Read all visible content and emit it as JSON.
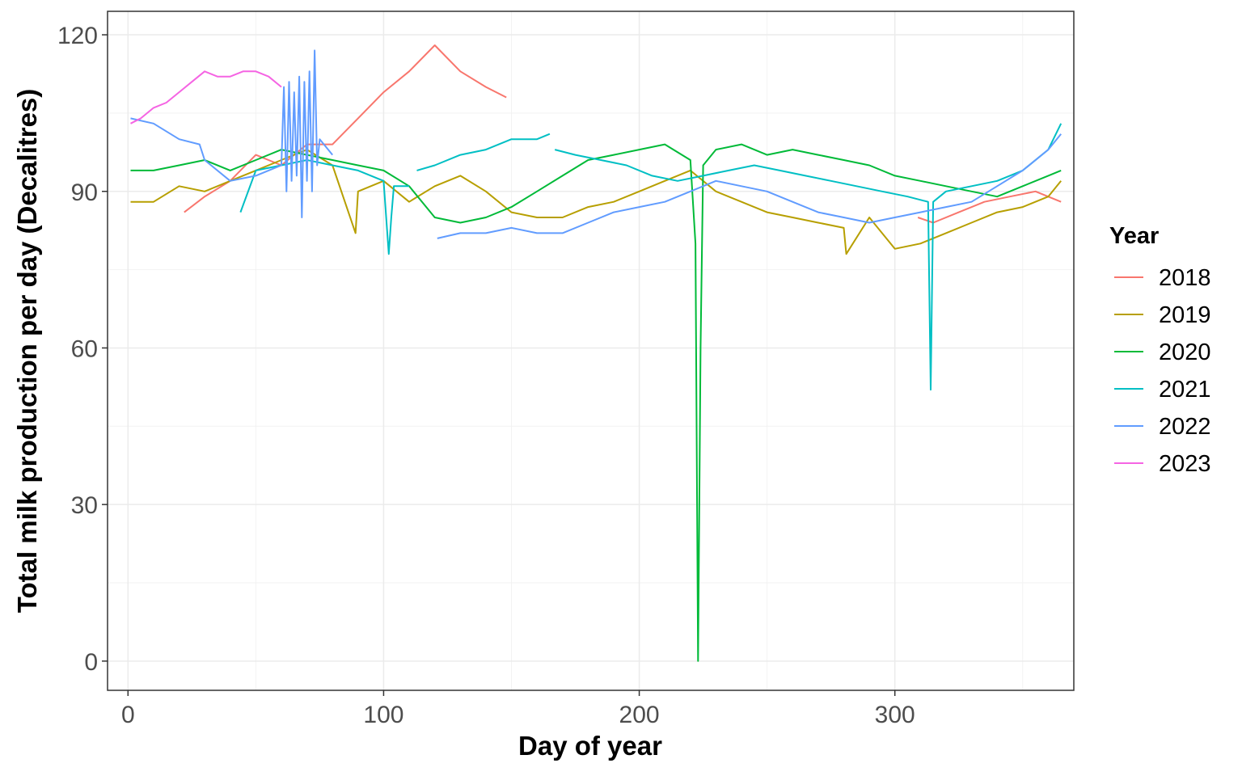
{
  "chart_data": {
    "type": "line",
    "title": "",
    "xlabel": "Day of year",
    "ylabel": "Total milk production per day (Decalitres)",
    "xlim": [
      -8,
      370
    ],
    "ylim": [
      -5.6,
      124.5
    ],
    "x_ticks": [
      0,
      100,
      200,
      300
    ],
    "y_ticks": [
      0,
      30,
      60,
      90,
      120
    ],
    "x_tick_labels": [
      "0",
      "100",
      "200",
      "300"
    ],
    "y_tick_labels": [
      "0",
      "30",
      "60",
      "90",
      "120"
    ],
    "grid": true,
    "legend": {
      "title": "Year",
      "position": "right"
    },
    "series": [
      {
        "name": "2018",
        "color": "#F8766D",
        "segments": [
          {
            "x": [
              22,
              30,
              40,
              50,
              60,
              70,
              80,
              90,
              100,
              110,
              120,
              130,
              140,
              148
            ],
            "y": [
              86,
              89,
              92,
              97,
              95,
              99,
              99,
              104,
              109,
              113,
              118,
              113,
              110,
              108
            ]
          },
          {
            "x": [
              309,
              315,
              325,
              335,
              345,
              355,
              365
            ],
            "y": [
              85,
              84,
              86,
              88,
              89,
              90,
              88
            ]
          }
        ]
      },
      {
        "name": "2019",
        "color": "#B79F00",
        "segments": [
          {
            "x": [
              1,
              10,
              20,
              30,
              40,
              50,
              60,
              70,
              80,
              89,
              90,
              100,
              110,
              120,
              130,
              140,
              150,
              160,
              170,
              180,
              190,
              200,
              210,
              220,
              230,
              240,
              250,
              260,
              270,
              280,
              281,
              290,
              300,
              310,
              320,
              330,
              340,
              350,
              360,
              365
            ],
            "y": [
              88,
              88,
              91,
              90,
              92,
              94,
              96,
              98,
              95,
              82,
              90,
              92,
              88,
              91,
              93,
              90,
              86,
              85,
              85,
              87,
              88,
              90,
              92,
              94,
              90,
              88,
              86,
              85,
              84,
              83,
              78,
              85,
              79,
              80,
              82,
              84,
              86,
              87,
              89,
              92
            ]
          }
        ]
      },
      {
        "name": "2020",
        "color": "#00BA38",
        "segments": [
          {
            "x": [
              1,
              10,
              20,
              30,
              40,
              50,
              60,
              70,
              80,
              90,
              100,
              110,
              120,
              130,
              140,
              150,
              160,
              170,
              180,
              190,
              200,
              210,
              220,
              222,
              223,
              224,
              225,
              230,
              240,
              250,
              260,
              270,
              280,
              290,
              300,
              310,
              320,
              330,
              340,
              350,
              360,
              365
            ],
            "y": [
              94,
              94,
              95,
              96,
              94,
              96,
              98,
              97,
              96,
              95,
              94,
              91,
              85,
              84,
              85,
              87,
              90,
              93,
              96,
              97,
              98,
              99,
              96,
              80,
              0,
              60,
              95,
              98,
              99,
              97,
              98,
              97,
              96,
              95,
              93,
              92,
              91,
              90,
              89,
              91,
              93,
              94
            ]
          }
        ]
      },
      {
        "name": "2021",
        "color": "#00BFC4",
        "segments": [
          {
            "x": [
              44,
              50,
              60,
              70,
              80,
              90,
              100,
              102,
              103,
              104,
              110
            ],
            "y": [
              86,
              94,
              95,
              96,
              95,
              94,
              92,
              78,
              85,
              91,
              91
            ]
          },
          {
            "x": [
              113,
              120,
              130,
              140,
              150,
              160,
              165
            ],
            "y": [
              94,
              95,
              97,
              98,
              100,
              100,
              101
            ]
          },
          {
            "x": [
              167,
              175,
              185,
              195,
              205,
              215,
              225,
              235,
              245,
              255,
              265,
              275,
              285,
              295,
              305,
              313,
              314,
              315,
              320,
              330,
              340,
              350,
              360,
              365
            ],
            "y": [
              98,
              97,
              96,
              95,
              93,
              92,
              93,
              94,
              95,
              94,
              93,
              92,
              91,
              90,
              89,
              88,
              52,
              88,
              90,
              91,
              92,
              94,
              98,
              103
            ]
          }
        ]
      },
      {
        "name": "2022",
        "color": "#619CFF",
        "segments": [
          {
            "x": [
              1,
              10,
              20,
              28,
              30,
              40,
              50,
              55,
              60,
              61,
              62,
              63,
              64,
              65,
              66,
              67,
              68,
              69,
              70,
              71,
              72,
              73,
              74,
              75,
              80
            ],
            "y": [
              104,
              103,
              100,
              99,
              96,
              92,
              93,
              94,
              95,
              110,
              90,
              111,
              92,
              109,
              93,
              112,
              85,
              111,
              92,
              113,
              90,
              117,
              95,
              100,
              97
            ]
          },
          {
            "x": [
              121,
              130,
              140,
              150,
              160,
              170,
              180,
              190,
              200,
              210,
              220,
              230,
              240,
              250,
              260,
              270,
              280,
              290,
              300,
              310,
              320,
              330,
              340,
              350,
              360,
              365
            ],
            "y": [
              81,
              82,
              82,
              83,
              82,
              82,
              84,
              86,
              87,
              88,
              90,
              92,
              91,
              90,
              88,
              86,
              85,
              84,
              85,
              86,
              87,
              88,
              91,
              94,
              98,
              101
            ]
          }
        ]
      },
      {
        "name": "2023",
        "color": "#F564E3",
        "segments": [
          {
            "x": [
              1,
              5,
              10,
              15,
              20,
              25,
              30,
              35,
              40,
              45,
              50,
              55,
              60
            ],
            "y": [
              103,
              104,
              106,
              107,
              109,
              111,
              113,
              112,
              112,
              113,
              113,
              112,
              110
            ]
          }
        ]
      }
    ]
  }
}
